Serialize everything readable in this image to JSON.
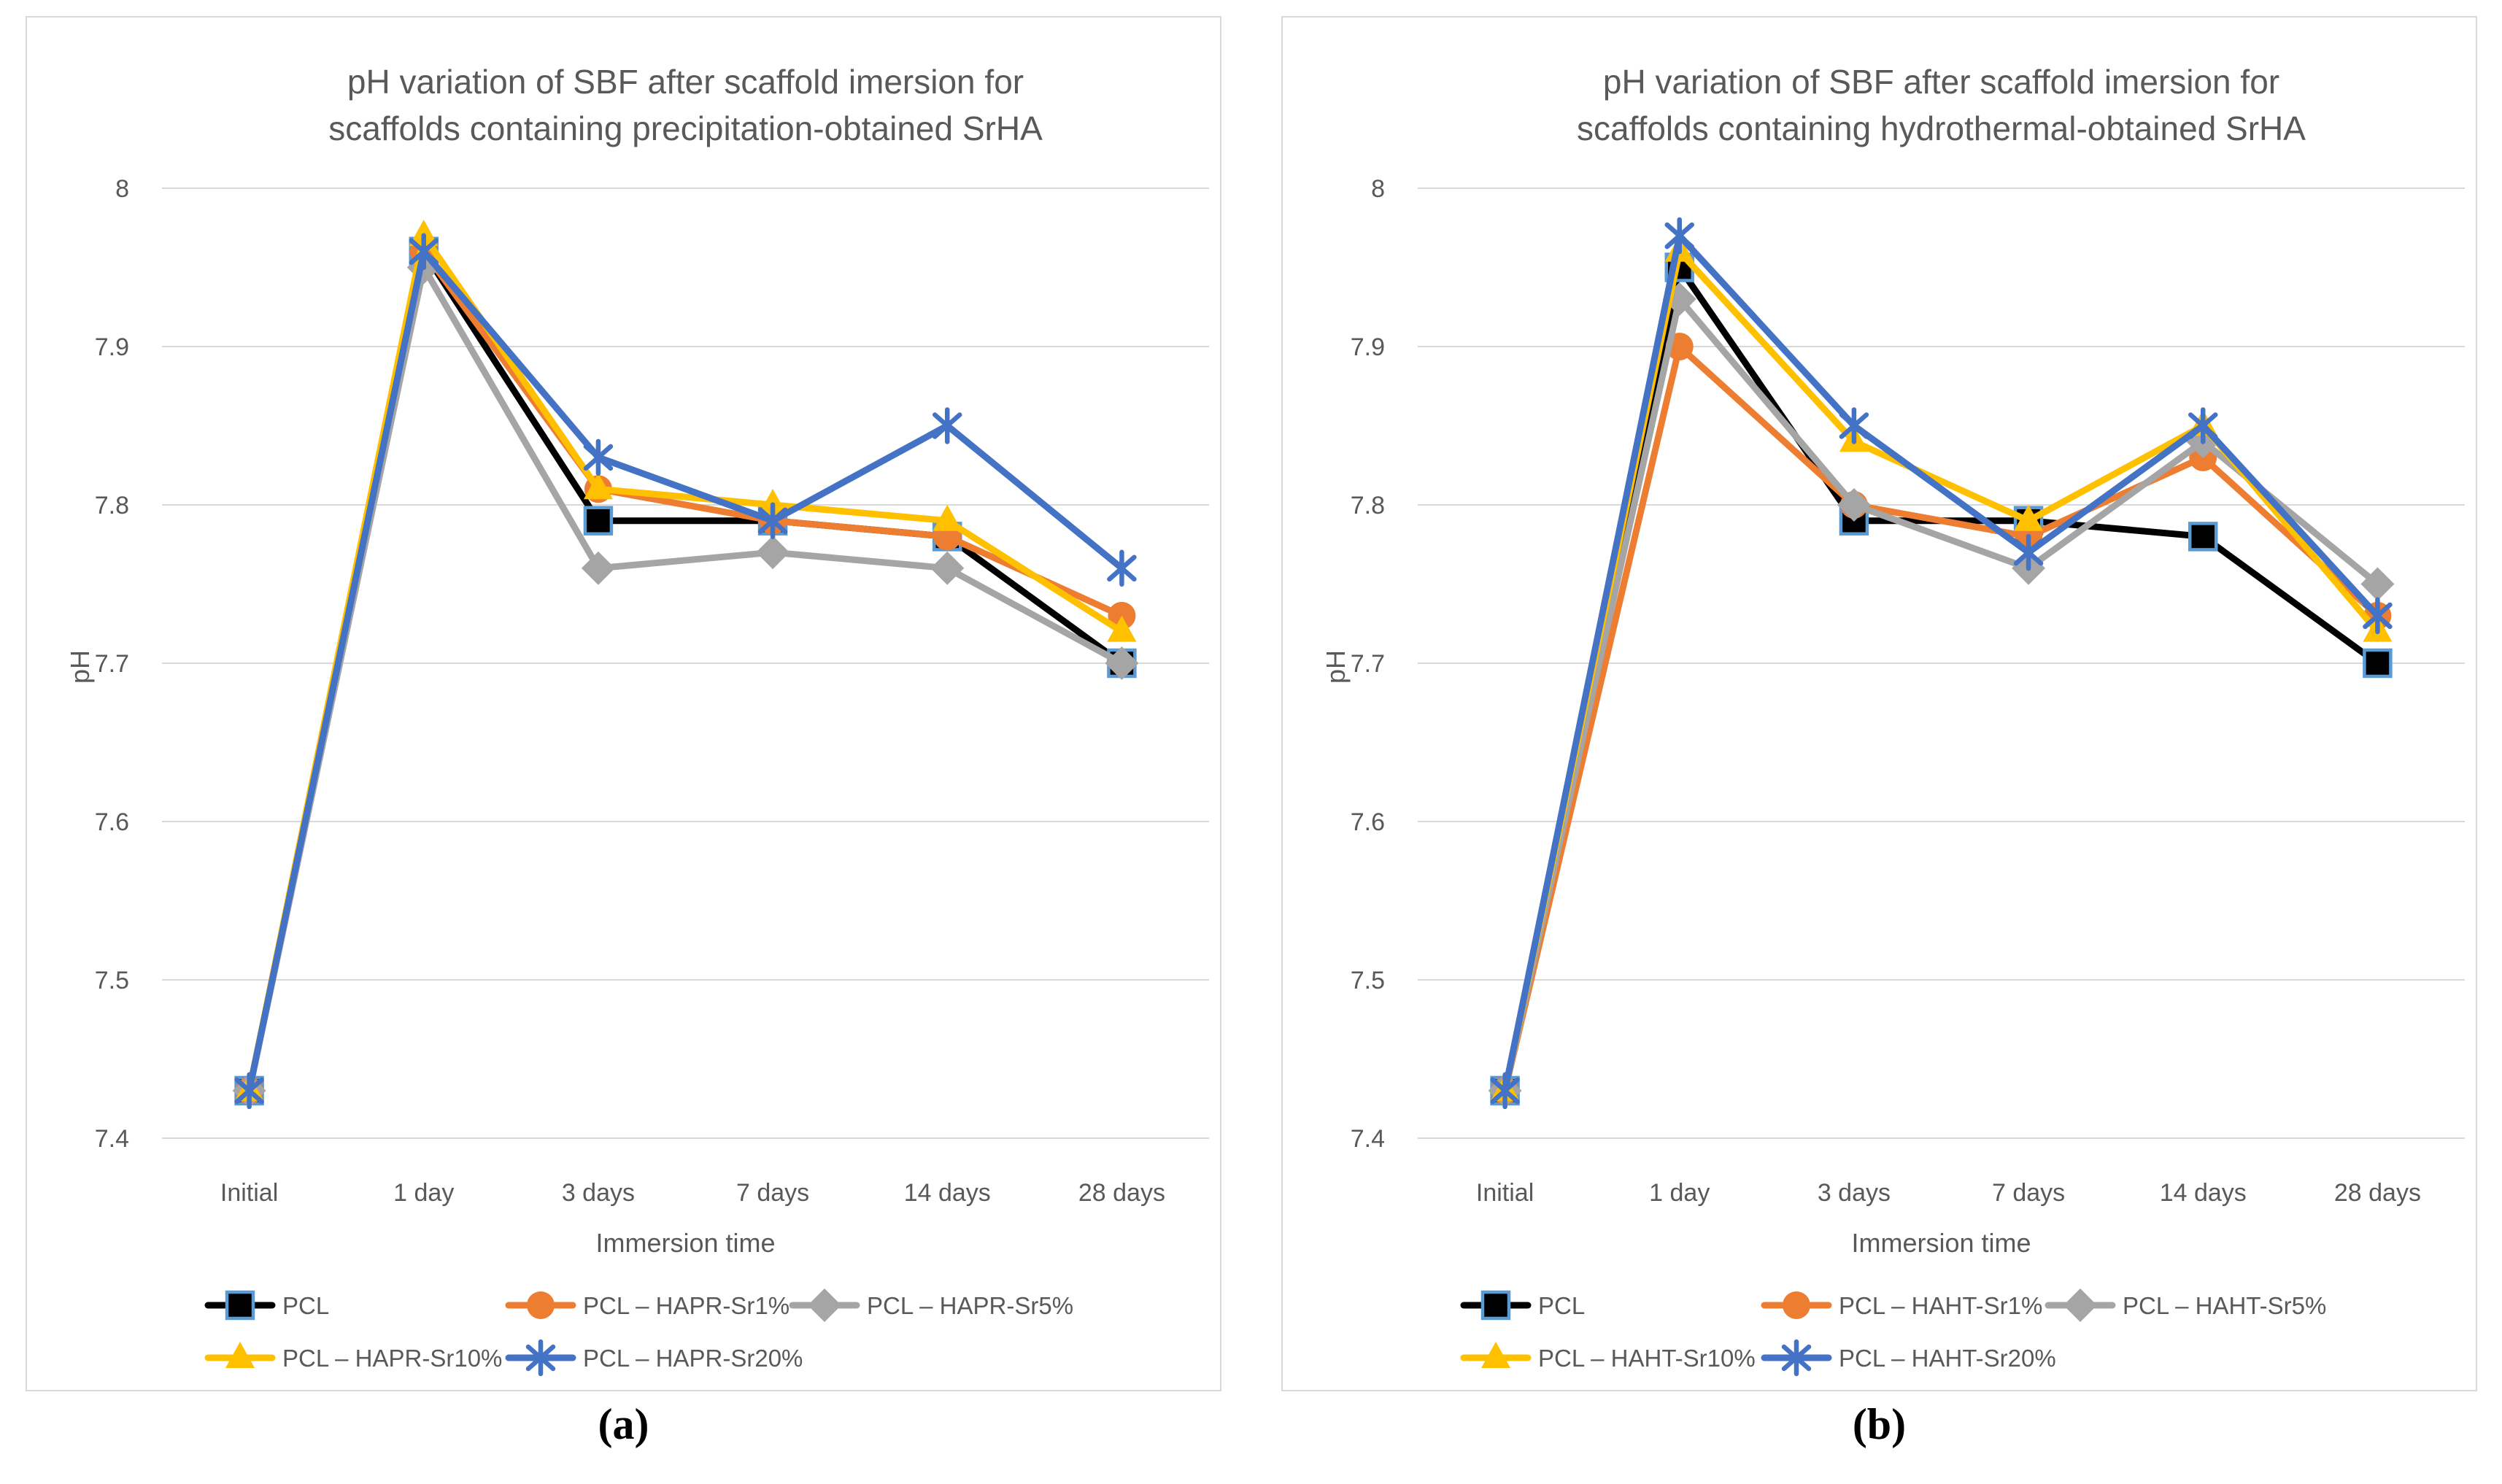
{
  "figure": {
    "background": "#FFFFFF",
    "panel_border_color": "#D9D9D9",
    "gridline_color": "#D9D9D9",
    "text_color": "#595959",
    "captions": {
      "a": "(a)",
      "b": "(b)"
    }
  },
  "chart_data": [
    {
      "id": "a",
      "type": "line",
      "title": "pH variation of SBF after scaffold imersion for scaffolds containing precipitation-obtained SrHA",
      "title_lines": [
        "pH variation of SBF after scaffold imersion for",
        "scaffolds containing precipitation-obtained SrHA"
      ],
      "caption": "(a)",
      "categories": [
        "Initial",
        "1 day",
        "3 days",
        "7 days",
        "14 days",
        "28 days"
      ],
      "xlabel": "Immersion time",
      "ylabel": "pH",
      "ylim": [
        7.4,
        8
      ],
      "ytick_labels": [
        "8",
        "7.9",
        "7.8",
        "7.7",
        "7.6",
        "7.5",
        "7.4"
      ],
      "grid": true,
      "legend_position": "bottom",
      "series": [
        {
          "name": "PCL",
          "color": "#000000",
          "marker": "square",
          "marker_stroke": "#5B9BD5",
          "values": [
            7.43,
            7.96,
            7.79,
            7.79,
            7.78,
            7.7
          ]
        },
        {
          "name": "PCL – HAPR-Sr1%",
          "color": "#ED7D31",
          "marker": "circle",
          "values": [
            7.43,
            7.96,
            7.81,
            7.79,
            7.78,
            7.73
          ]
        },
        {
          "name": "PCL – HAPR-Sr5%",
          "color": "#A5A5A5",
          "marker": "diamond",
          "values": [
            7.43,
            7.95,
            7.76,
            7.77,
            7.76,
            7.7
          ]
        },
        {
          "name": "PCL – HAPR-Sr10%",
          "color": "#FFC000",
          "marker": "triangle",
          "values": [
            7.43,
            7.97,
            7.81,
            7.8,
            7.79,
            7.72
          ]
        },
        {
          "name": "PCL – HAPR-Sr20%",
          "color": "#4472C4",
          "marker": "asterisk",
          "values": [
            7.43,
            7.96,
            7.83,
            7.79,
            7.85,
            7.76
          ]
        }
      ]
    },
    {
      "id": "b",
      "type": "line",
      "title": "pH variation of SBF after scaffold imersion for scaffolds containing hydrothermal-obtained SrHA",
      "title_lines": [
        "pH variation of SBF after scaffold imersion for",
        "scaffolds containing hydrothermal-obtained SrHA"
      ],
      "caption": "(b)",
      "categories": [
        "Initial",
        "1 day",
        "3 days",
        "7 days",
        "14 days",
        "28 days"
      ],
      "xlabel": "Immersion time",
      "ylabel": "pH",
      "ylim": [
        7.4,
        8
      ],
      "ytick_labels": [
        "8",
        "7.9",
        "7.8",
        "7.7",
        "7.6",
        "7.5",
        "7.4"
      ],
      "grid": true,
      "legend_position": "bottom",
      "series": [
        {
          "name": "PCL",
          "color": "#000000",
          "marker": "square",
          "marker_stroke": "#5B9BD5",
          "values": [
            7.43,
            7.95,
            7.79,
            7.79,
            7.78,
            7.7
          ]
        },
        {
          "name": "PCL – HAHT-Sr1%",
          "color": "#ED7D31",
          "marker": "circle",
          "values": [
            7.43,
            7.9,
            7.8,
            7.78,
            7.83,
            7.73
          ]
        },
        {
          "name": "PCL – HAHT-Sr5%",
          "color": "#A5A5A5",
          "marker": "diamond",
          "values": [
            7.43,
            7.93,
            7.8,
            7.76,
            7.84,
            7.75
          ]
        },
        {
          "name": "PCL – HAHT-Sr10%",
          "color": "#FFC000",
          "marker": "triangle",
          "values": [
            7.43,
            7.96,
            7.84,
            7.79,
            7.85,
            7.72
          ]
        },
        {
          "name": "PCL – HAHT-Sr20%",
          "color": "#4472C4",
          "marker": "asterisk",
          "values": [
            7.43,
            7.97,
            7.85,
            7.77,
            7.85,
            7.73
          ]
        }
      ]
    }
  ]
}
